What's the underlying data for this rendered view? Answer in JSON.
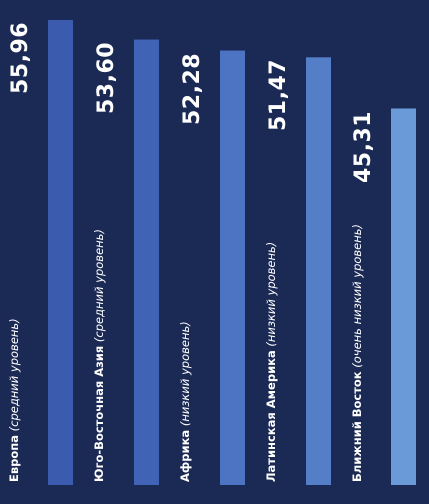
{
  "chart_data": {
    "type": "bar",
    "categories": [
      "Европа",
      "Юго-Восточная Азия",
      "Африка",
      "Латинская Америка",
      "Ближний Восток"
    ],
    "category_notes": [
      "(средний уровень)",
      "(средний уровень)",
      "(низкий уровень)",
      "(низкий уровень)",
      "(очень низкий уровень)"
    ],
    "values": [
      55.96,
      53.6,
      52.28,
      51.47,
      45.31
    ],
    "value_labels": [
      "55,96",
      "53,60",
      "52,28",
      "51,47",
      "45,31"
    ],
    "colors": [
      "#3b5cae",
      "#4163b5",
      "#4d74c2",
      "#557ec9",
      "#6b9ad8"
    ],
    "ylim": [
      0,
      60
    ],
    "grid": false,
    "legend": "none"
  }
}
